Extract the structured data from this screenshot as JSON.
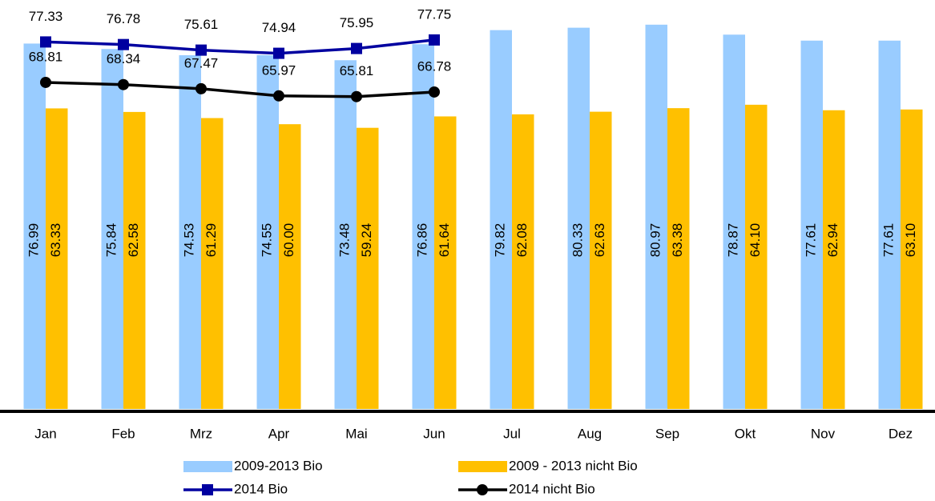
{
  "chart_data": {
    "type": "bar",
    "categories": [
      "Jan",
      "Feb",
      "Mrz",
      "Apr",
      "Mai",
      "Jun",
      "Jul",
      "Aug",
      "Sep",
      "Okt",
      "Nov",
      "Dez"
    ],
    "ylim": [
      0,
      86
    ],
    "series": [
      {
        "name": "2009-2013 Bio",
        "type": "bar",
        "color": "#99ccff",
        "values": [
          76.99,
          75.84,
          74.53,
          74.55,
          73.48,
          76.86,
          79.82,
          80.33,
          80.97,
          78.87,
          77.61,
          77.61
        ],
        "value_labels": [
          "76.99",
          "75.84",
          "74.53",
          "74.55",
          "73.48",
          "76.86",
          "79.82",
          "80.33",
          "80.97",
          "78.87",
          "77.61",
          "77.61"
        ]
      },
      {
        "name": "2009 - 2013 nicht Bio",
        "type": "bar",
        "color": "#ffc000",
        "values": [
          63.33,
          62.58,
          61.29,
          60.0,
          59.24,
          61.64,
          62.08,
          62.63,
          63.38,
          64.1,
          62.94,
          63.1
        ],
        "value_labels": [
          "63.33",
          "62.58",
          "61.29",
          "60.00",
          "59.24",
          "61.64",
          "62.08",
          "62.63",
          "63.38",
          "64.10",
          "62.94",
          "63.10"
        ]
      },
      {
        "name": "2014 Bio",
        "type": "line",
        "marker": "square",
        "color": "#0000a0",
        "values": [
          77.33,
          76.78,
          75.61,
          74.94,
          75.95,
          77.75,
          null,
          null,
          null,
          null,
          null,
          null
        ],
        "value_labels": [
          "77.33",
          "76.78",
          "75.61",
          "74.94",
          "75.95",
          "77.75",
          null,
          null,
          null,
          null,
          null,
          null
        ]
      },
      {
        "name": "2014 nicht Bio",
        "type": "line",
        "marker": "circle",
        "color": "#000000",
        "values": [
          68.81,
          68.34,
          67.47,
          65.97,
          65.81,
          66.78,
          null,
          null,
          null,
          null,
          null,
          null
        ],
        "value_labels": [
          "68.81",
          "68.34",
          "67.47",
          "65.97",
          "65.81",
          "66.78",
          null,
          null,
          null,
          null,
          null,
          null
        ]
      }
    ]
  }
}
